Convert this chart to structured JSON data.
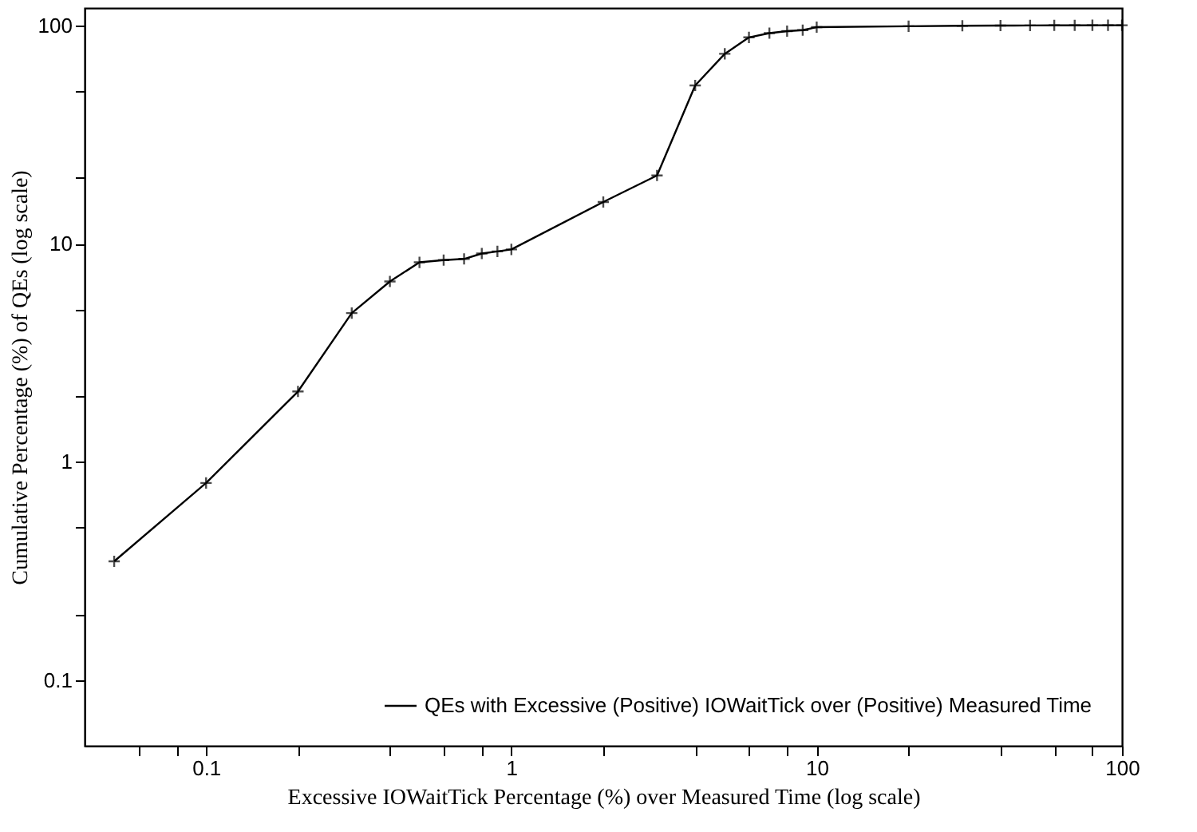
{
  "chart_data": {
    "type": "line",
    "xlabel": "Excessive IOWaitTick Percentage (%) over Measured Time (log scale)",
    "ylabel": "Cumulative Percentage (%) of QEs (log scale)",
    "x": [
      0.05,
      0.1,
      0.2,
      0.3,
      0.4,
      0.5,
      0.6,
      0.7,
      0.8,
      0.9,
      1,
      2,
      3,
      4,
      5,
      6,
      7,
      8,
      9,
      10,
      20,
      30,
      40,
      50,
      60,
      70,
      80,
      90,
      100
    ],
    "series": [
      {
        "name": "QEs with Excessive (Positive) IOWaitTick over (Positive) Measured Time",
        "color": "#000000",
        "values": [
          0.35,
          0.8,
          2.1,
          4.8,
          6.7,
          8.2,
          8.4,
          8.5,
          9.0,
          9.2,
          9.4,
          15.5,
          20.5,
          53,
          74,
          88,
          92,
          94,
          95,
          98,
          99,
          99.5,
          99.7,
          99.8,
          99.9,
          99.9,
          100,
          100,
          100
        ]
      }
    ],
    "log": "xy",
    "xlim": [
      0.04,
      100
    ],
    "ylim": [
      0.05,
      120
    ],
    "xticks": [
      {
        "value": 0.06,
        "label": null
      },
      {
        "value": 0.08,
        "label": null
      },
      0.1,
      {
        "value": 0.2,
        "label": null
      },
      {
        "value": 0.4,
        "label": null
      },
      {
        "value": 0.6,
        "label": null
      },
      {
        "value": 0.8,
        "label": null
      },
      1,
      {
        "value": 2,
        "label": null
      },
      {
        "value": 4,
        "label": null
      },
      {
        "value": 6,
        "label": null
      },
      {
        "value": 8,
        "label": null
      },
      10,
      {
        "value": 20,
        "label": null
      },
      {
        "value": 40,
        "label": null
      },
      {
        "value": 60,
        "label": null
      },
      {
        "value": 80,
        "label": null
      },
      100
    ],
    "yticks": [
      0.1,
      {
        "value": 0.2,
        "label": null
      },
      {
        "value": 0.5,
        "label": null
      },
      1,
      {
        "value": 2,
        "label": null
      },
      {
        "value": 5,
        "label": null
      },
      10,
      {
        "value": 20,
        "label": null
      },
      {
        "value": 50,
        "label": null
      },
      100
    ],
    "grid": false,
    "legend": "bottom right",
    "marker": "cross",
    "line_style": "solid"
  }
}
